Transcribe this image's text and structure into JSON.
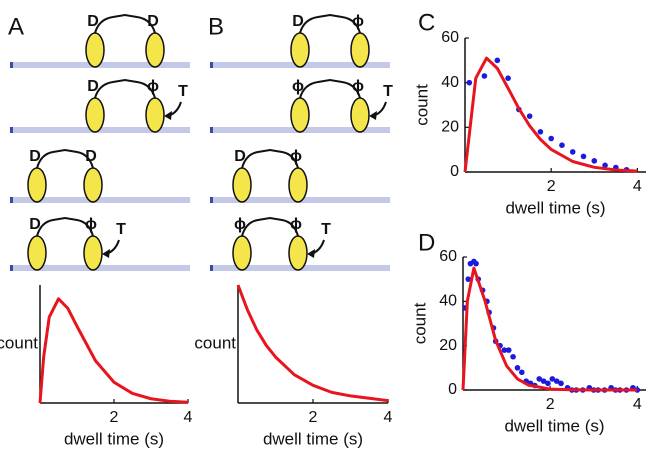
{
  "panel_labels": [
    "A",
    "B",
    "C",
    "D"
  ],
  "diagrams": [
    {
      "rows": [
        {
          "labels": [
            "D",
            "D"
          ]
        },
        {
          "labels": [
            "D",
            "ϕ"
          ],
          "tag": "T"
        },
        {
          "labels": [
            "D",
            "D"
          ]
        },
        {
          "labels": [
            "D",
            "ϕ"
          ],
          "tag": "T"
        }
      ]
    },
    {
      "rows": [
        {
          "labels": [
            "D",
            "ϕ"
          ]
        },
        {
          "labels": [
            "ϕ",
            "ϕ"
          ],
          "tag": "T"
        },
        {
          "labels": [
            "D",
            "ϕ"
          ]
        },
        {
          "labels": [
            "ϕ",
            "ϕ"
          ],
          "tag": "T"
        }
      ]
    }
  ],
  "chart_data": [
    {
      "type": "line",
      "xlabel": "dwell time (s)",
      "ylabel": "count",
      "xlim": [
        0,
        4
      ],
      "ylim": [
        0,
        1
      ],
      "xticks": [
        2,
        4
      ],
      "series": [
        {
          "color": "#e8141e",
          "x": [
            0,
            0.1,
            0.25,
            0.5,
            0.75,
            1,
            1.5,
            2,
            2.5,
            3,
            3.5,
            4
          ],
          "values": [
            0,
            0.393,
            0.728,
            0.883,
            0.803,
            0.65,
            0.358,
            0.176,
            0.081,
            0.036,
            0.015,
            0.006
          ]
        }
      ]
    },
    {
      "type": "line",
      "xlabel": "dwell time (s)",
      "ylabel": "count",
      "xlim": [
        0,
        4
      ],
      "ylim": [
        0,
        1
      ],
      "xticks": [
        2,
        4
      ],
      "series": [
        {
          "color": "#e8141e",
          "x": [
            0,
            0.25,
            0.5,
            0.75,
            1,
            1.5,
            2,
            2.5,
            3,
            3.5,
            4
          ],
          "values": [
            1,
            0.79,
            0.62,
            0.49,
            0.39,
            0.24,
            0.15,
            0.09,
            0.06,
            0.04,
            0.02
          ]
        }
      ]
    },
    {
      "type": "scatter",
      "xlabel": "dwell time (s)",
      "ylabel": "count",
      "xlim": [
        0,
        4.2
      ],
      "ylim": [
        0,
        60
      ],
      "xticks": [
        2,
        4
      ],
      "yticks": [
        0,
        20,
        40,
        60
      ],
      "series": [
        {
          "mode": "markers",
          "color": "#1a1ae0",
          "x": [
            0.1,
            0.45,
            0.75,
            1.0,
            1.25,
            1.5,
            1.75,
            2.0,
            2.25,
            2.5,
            2.75,
            3.0,
            3.25,
            3.5,
            3.75
          ],
          "values": [
            40,
            43,
            50,
            42,
            28,
            25,
            18,
            15,
            12,
            9,
            7,
            5,
            3,
            2,
            1
          ]
        },
        {
          "mode": "line",
          "color": "#e8141e",
          "x": [
            0,
            0.25,
            0.5,
            0.75,
            1,
            1.25,
            1.5,
            1.75,
            2,
            2.5,
            3,
            3.5,
            4
          ],
          "values": [
            0,
            42,
            51,
            46.4,
            37.5,
            28.4,
            20.7,
            14.6,
            10.1,
            4.7,
            2.1,
            0.9,
            0.4
          ]
        }
      ]
    },
    {
      "type": "scatter",
      "xlabel": "dwell time (s)",
      "ylabel": "count",
      "xlim": [
        0,
        4.2
      ],
      "ylim": [
        0,
        60
      ],
      "xticks": [
        2,
        4
      ],
      "yticks": [
        0,
        20,
        40,
        60
      ],
      "series": [
        {
          "mode": "markers",
          "color": "#1a1ae0",
          "x": [
            0.05,
            0.12,
            0.17,
            0.25,
            0.3,
            0.35,
            0.45,
            0.55,
            0.6,
            0.7,
            0.75,
            0.85,
            0.95,
            1.05,
            1.15,
            1.25,
            1.35,
            1.45,
            1.55,
            1.65,
            1.75,
            1.85,
            1.95,
            2.05,
            2.15,
            2.25,
            2.4,
            2.5,
            2.6,
            2.75,
            2.9,
            3.0,
            3.1,
            3.25,
            3.4,
            3.5,
            3.6,
            3.75,
            3.9,
            4.0
          ],
          "values": [
            37,
            50,
            57,
            58,
            57,
            50,
            45,
            40,
            35,
            28,
            22,
            20,
            18,
            18,
            15,
            10,
            8,
            4,
            3,
            2,
            5,
            4,
            3,
            5,
            4,
            3,
            1,
            0,
            0,
            0,
            1,
            0,
            0,
            0,
            1,
            0,
            0,
            0,
            1,
            0
          ]
        },
        {
          "mode": "line",
          "color": "#e8141e",
          "x": [
            0,
            0.1,
            0.25,
            0.5,
            0.75,
            1,
            1.25,
            1.5,
            2,
            2.5,
            3,
            4
          ],
          "values": [
            0,
            40.1,
            55,
            40.5,
            22.3,
            10.9,
            5,
            2.2,
            0.4,
            0.1,
            0,
            0
          ]
        }
      ]
    }
  ]
}
